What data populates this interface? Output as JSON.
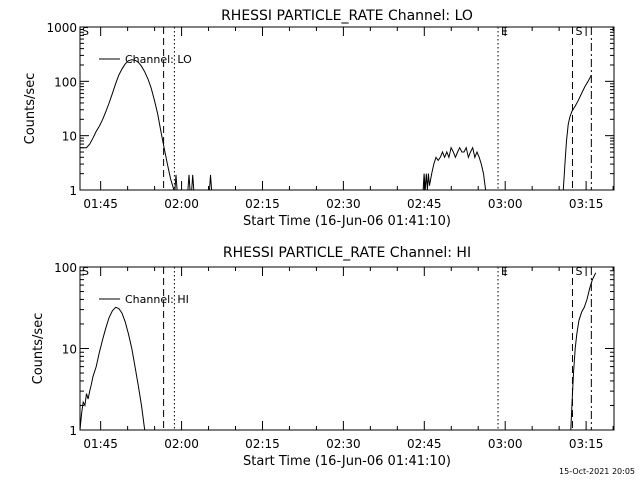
{
  "footer_timestamp": "15-Oct-2021 20:05",
  "chart_data": [
    {
      "type": "line",
      "title": "RHESSI PARTICLE_RATE Channel: LO",
      "xlabel": "Start Time (16-Jun-06 01:41:10)",
      "ylabel": "Counts/sec",
      "yscale": "log",
      "ylim": [
        1,
        1000
      ],
      "xlim_minutes": [
        0,
        99
      ],
      "y_ticks": [
        {
          "value": 1,
          "label": "1"
        },
        {
          "value": 10,
          "label": "10"
        },
        {
          "value": 100,
          "label": "100"
        },
        {
          "value": 1000,
          "label": "1000"
        }
      ],
      "x_ticks": [
        {
          "minutes": 3.83,
          "label": "01:45"
        },
        {
          "minutes": 18.83,
          "label": "02:00"
        },
        {
          "minutes": 33.83,
          "label": "02:15"
        },
        {
          "minutes": 48.83,
          "label": "02:30"
        },
        {
          "minutes": 63.83,
          "label": "02:45"
        },
        {
          "minutes": 78.83,
          "label": "03:00"
        },
        {
          "minutes": 93.83,
          "label": "03:15"
        }
      ],
      "legend": {
        "label": "Channel: LO",
        "position": "top-left"
      },
      "markers": [
        {
          "minutes": 15.5,
          "style": "dashed",
          "label": ""
        },
        {
          "minutes": 17.5,
          "style": "dotted",
          "label": ""
        },
        {
          "minutes": 77.5,
          "style": "dotted",
          "label": "E"
        },
        {
          "minutes": 91.3,
          "style": "dashed",
          "label": "S"
        },
        {
          "minutes": 94.8,
          "style": "dashdot",
          "label": ""
        }
      ],
      "start_label": "S",
      "series": [
        {
          "name": "Channel: LO",
          "segments": [
            [
              [
                0,
                6
              ],
              [
                1.2,
                6
              ],
              [
                1.8,
                7
              ],
              [
                2.4,
                9
              ],
              [
                3,
                12
              ],
              [
                3.6,
                15
              ],
              [
                4.2,
                20
              ],
              [
                4.8,
                28
              ],
              [
                5.4,
                40
              ],
              [
                6,
                60
              ],
              [
                6.6,
                90
              ],
              [
                7.2,
                130
              ],
              [
                7.8,
                170
              ],
              [
                8.4,
                210
              ],
              [
                9,
                240
              ],
              [
                9.6,
                250
              ],
              [
                10.2,
                245
              ],
              [
                10.8,
                225
              ],
              [
                11.4,
                190
              ],
              [
                12,
                150
              ],
              [
                12.6,
                110
              ],
              [
                13.2,
                75
              ],
              [
                13.8,
                45
              ],
              [
                14.4,
                25
              ],
              [
                15,
                12
              ],
              [
                15.6,
                6
              ],
              [
                16.2,
                3
              ],
              [
                16.8,
                1.6
              ],
              [
                17.4,
                1
              ]
            ],
            [
              [
                17.6,
                1
              ],
              [
                17.8,
                1.9
              ],
              [
                18.0,
                1
              ]
            ],
            [
              [
                20.0,
                1
              ],
              [
                20.2,
                1.9
              ],
              [
                20.4,
                1
              ]
            ],
            [
              [
                20.7,
                1
              ],
              [
                20.9,
                1.9
              ],
              [
                21.1,
                1
              ]
            ],
            [
              [
                24.0,
                1
              ],
              [
                24.2,
                1.9
              ],
              [
                24.4,
                1
              ]
            ],
            [
              [
                63.6,
                1
              ],
              [
                63.8,
                2
              ],
              [
                64.0,
                1
              ],
              [
                64.2,
                2
              ],
              [
                64.4,
                1
              ],
              [
                64.6,
                2
              ],
              [
                64.8,
                1.2
              ],
              [
                65.2,
                2
              ],
              [
                65.6,
                3
              ],
              [
                66,
                4
              ],
              [
                66.4,
                3.5
              ],
              [
                66.8,
                4
              ],
              [
                67.2,
                5
              ],
              [
                67.6,
                4
              ],
              [
                68,
                5
              ],
              [
                68.4,
                4
              ],
              [
                68.8,
                6
              ],
              [
                69.2,
                5
              ],
              [
                69.6,
                4
              ],
              [
                70,
                5
              ],
              [
                70.4,
                6
              ],
              [
                70.8,
                5
              ],
              [
                71.2,
                5
              ],
              [
                71.6,
                6
              ],
              [
                72,
                4
              ],
              [
                72.4,
                5
              ],
              [
                72.8,
                6
              ],
              [
                73.2,
                4
              ],
              [
                73.6,
                5
              ],
              [
                74,
                4
              ],
              [
                74.4,
                3
              ],
              [
                74.8,
                2
              ],
              [
                75.2,
                1
              ]
            ],
            [
              [
                89.6,
                1
              ],
              [
                89.9,
                3
              ],
              [
                90.2,
                8
              ],
              [
                90.5,
                16
              ],
              [
                90.8,
                22
              ],
              [
                91.2,
                28
              ],
              [
                91.8,
                35
              ],
              [
                92.4,
                45
              ],
              [
                93,
                60
              ],
              [
                93.6,
                80
              ],
              [
                94.2,
                100
              ],
              [
                94.8,
                130
              ]
            ]
          ]
        }
      ]
    },
    {
      "type": "line",
      "title": "RHESSI PARTICLE_RATE Channel: HI",
      "xlabel": "Start Time (16-Jun-06 01:41:10)",
      "ylabel": "Counts/sec",
      "yscale": "log",
      "ylim": [
        1,
        100
      ],
      "xlim_minutes": [
        0,
        99
      ],
      "y_ticks": [
        {
          "value": 1,
          "label": "1"
        },
        {
          "value": 10,
          "label": "10"
        },
        {
          "value": 100,
          "label": "100"
        }
      ],
      "x_ticks": [
        {
          "minutes": 3.83,
          "label": "01:45"
        },
        {
          "minutes": 18.83,
          "label": "02:00"
        },
        {
          "minutes": 33.83,
          "label": "02:15"
        },
        {
          "minutes": 48.83,
          "label": "02:30"
        },
        {
          "minutes": 63.83,
          "label": "02:45"
        },
        {
          "minutes": 78.83,
          "label": "03:00"
        },
        {
          "minutes": 93.83,
          "label": "03:15"
        }
      ],
      "legend": {
        "label": "Channel: HI",
        "position": "top-left"
      },
      "markers": [
        {
          "minutes": 15.5,
          "style": "dashed",
          "label": ""
        },
        {
          "minutes": 17.5,
          "style": "dotted",
          "label": ""
        },
        {
          "minutes": 77.5,
          "style": "dotted",
          "label": "E"
        },
        {
          "minutes": 91.3,
          "style": "dashed",
          "label": "S"
        },
        {
          "minutes": 94.8,
          "style": "dashdot",
          "label": ""
        }
      ],
      "start_label": "S",
      "series": [
        {
          "name": "Channel: HI",
          "segments": [
            [
              [
                0,
                1
              ],
              [
                0.3,
                1.6
              ],
              [
                0.6,
                2.2
              ],
              [
                0.9,
                2
              ],
              [
                1.2,
                2.8
              ],
              [
                1.5,
                2.4
              ],
              [
                1.8,
                3
              ],
              [
                2.1,
                3.6
              ],
              [
                2.4,
                4.5
              ],
              [
                3,
                6
              ],
              [
                3.6,
                9
              ],
              [
                4.2,
                13
              ],
              [
                4.8,
                18
              ],
              [
                5.4,
                24
              ],
              [
                6,
                29
              ],
              [
                6.6,
                32
              ],
              [
                7.2,
                31
              ],
              [
                7.8,
                27
              ],
              [
                8.4,
                21
              ],
              [
                9,
                15
              ],
              [
                9.6,
                10
              ],
              [
                10.2,
                6
              ],
              [
                10.8,
                3.5
              ],
              [
                11.4,
                2
              ],
              [
                12,
                1
              ]
            ],
            [
              [
                91.0,
                1
              ],
              [
                91.2,
                2
              ],
              [
                91.5,
                5
              ],
              [
                91.8,
                10
              ],
              [
                92.1,
                15
              ],
              [
                92.5,
                22
              ],
              [
                93,
                28
              ],
              [
                93.5,
                32
              ],
              [
                94,
                40
              ],
              [
                94.5,
                55
              ],
              [
                95,
                70
              ],
              [
                95.6,
                85
              ]
            ]
          ]
        }
      ]
    }
  ]
}
